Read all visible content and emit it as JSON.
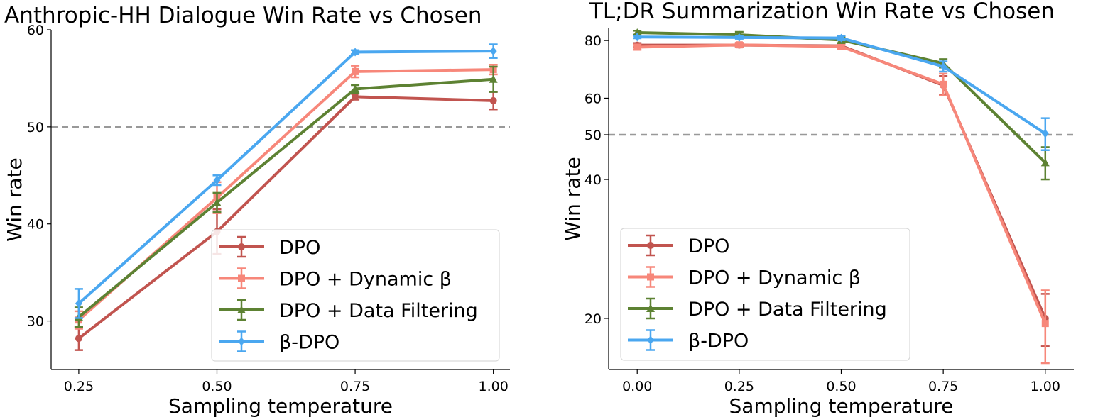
{
  "chart_data": [
    {
      "type": "line",
      "title": "Anthropic-HH Dialogue Win Rate vs Chosen",
      "xlabel": "Sampling temperature",
      "ylabel": "Win rate",
      "x": [
        0.25,
        0.5,
        0.75,
        1.0
      ],
      "x_tick_labels": [
        "0.25",
        "0.50",
        "0.75",
        "1.00"
      ],
      "y_ticks": [
        30,
        40,
        50,
        60
      ],
      "y_tick_labels": [
        "30",
        "40",
        "50",
        "60"
      ],
      "xlim": [
        0.2,
        1.03
      ],
      "ylim": [
        25,
        60
      ],
      "y_scale": "linear",
      "reference_line": 50,
      "legend": "lower right",
      "series": [
        {
          "name": "DPO",
          "color": "#c1544f",
          "marker": "circle",
          "values": [
            28.2,
            39.2,
            53.1,
            52.7
          ],
          "errors": [
            1.2,
            2.3,
            0.3,
            0.9
          ]
        },
        {
          "name": "DPO + Dynamic β",
          "color": "#f7877a",
          "marker": "square",
          "values": [
            30.1,
            42.7,
            55.7,
            55.9
          ],
          "errors": [
            0.9,
            1.6,
            0.6,
            0.5
          ]
        },
        {
          "name": "DPO + Data Filtering",
          "color": "#5d8233",
          "marker": "triangle",
          "values": [
            30.4,
            42.2,
            53.9,
            54.9
          ],
          "errors": [
            1.0,
            1.0,
            0.4,
            1.3
          ]
        },
        {
          "name": "β-DPO",
          "color": "#4aa7f0",
          "marker": "diamond",
          "values": [
            31.8,
            44.5,
            57.7,
            57.8
          ],
          "errors": [
            1.5,
            0.5,
            0.2,
            0.7
          ]
        }
      ]
    },
    {
      "type": "line",
      "title": "TL;DR Summarization Win Rate vs Chosen",
      "xlabel": "Sampling temperature",
      "ylabel": "Win rate",
      "x": [
        0.0,
        0.25,
        0.5,
        0.75,
        1.0
      ],
      "x_tick_labels": [
        "0.00",
        "0.25",
        "0.50",
        "0.75",
        "1.00"
      ],
      "y_ticks": [
        20,
        40,
        50,
        60,
        80
      ],
      "y_tick_labels": [
        "20",
        "40",
        "50",
        "60",
        "80"
      ],
      "xlim": [
        -0.07,
        1.07
      ],
      "ylim": [
        15.5,
        85
      ],
      "y_scale": "log",
      "reference_line": 50,
      "legend": "lower left",
      "series": [
        {
          "name": "DPO",
          "color": "#c1544f",
          "marker": "circle",
          "values": [
            78.2,
            78.2,
            77.9,
            64.0,
            20.0
          ],
          "errors": [
            0.8,
            0.8,
            1.0,
            3.0,
            2.6
          ]
        },
        {
          "name": "DPO + Dynamic β",
          "color": "#f7877a",
          "marker": "square",
          "values": [
            77.4,
            78.3,
            77.6,
            64.3,
            19.5
          ],
          "errors": [
            1.0,
            0.8,
            0.8,
            3.5,
            3.5
          ]
        },
        {
          "name": "DPO + Data Filtering",
          "color": "#5d8233",
          "marker": "triangle",
          "values": [
            83.2,
            82.3,
            80.2,
            71.4,
            43.5
          ],
          "errors": [
            0.8,
            1.2,
            1.2,
            1.5,
            3.5
          ]
        },
        {
          "name": "β-DPO",
          "color": "#4aa7f0",
          "marker": "diamond",
          "values": [
            81.4,
            81.2,
            81.0,
            70.3,
            50.3
          ],
          "errors": [
            0.5,
            0.5,
            0.9,
            1.8,
            4.0
          ]
        }
      ]
    }
  ]
}
